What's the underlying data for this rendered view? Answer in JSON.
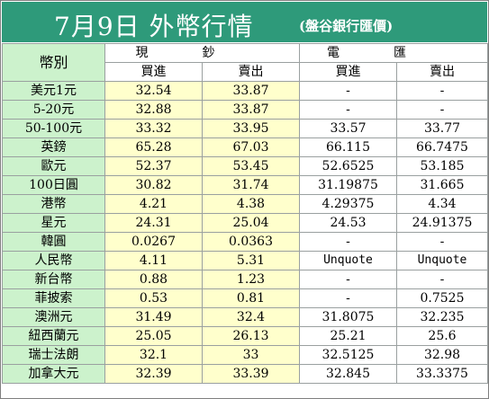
{
  "title": {
    "main": "7月9日 外幣行情",
    "source": "(盤谷銀行匯價)"
  },
  "headers": {
    "currency": "幣別",
    "cash_group": "現鈔",
    "wire_group": "電匯",
    "buy": "買進",
    "sell": "賣出"
  },
  "colors": {
    "title_bg": "#2e9a7a",
    "name_col_bg": "#ccf2cc",
    "cash_col_bg": "#ffffcc"
  },
  "rows": [
    {
      "name": "美元1元",
      "cash_buy": "32.54",
      "cash_sell": "33.87",
      "wire_buy": "-",
      "wire_sell": "-"
    },
    {
      "name": "5-20元",
      "cash_buy": "32.88",
      "cash_sell": "33.87",
      "wire_buy": "-",
      "wire_sell": "-"
    },
    {
      "name": "50-100元",
      "cash_buy": "33.32",
      "cash_sell": "33.95",
      "wire_buy": "33.57",
      "wire_sell": "33.77"
    },
    {
      "name": "英鎊",
      "cash_buy": "65.28",
      "cash_sell": "67.03",
      "wire_buy": "66.115",
      "wire_sell": "66.7475"
    },
    {
      "name": "歐元",
      "cash_buy": "52.37",
      "cash_sell": "53.45",
      "wire_buy": "52.6525",
      "wire_sell": "53.185"
    },
    {
      "name": "100日圓",
      "cash_buy": "30.82",
      "cash_sell": "31.74",
      "wire_buy": "31.19875",
      "wire_sell": "31.665"
    },
    {
      "name": "港幣",
      "cash_buy": "4.21",
      "cash_sell": "4.38",
      "wire_buy": "4.29375",
      "wire_sell": "4.34"
    },
    {
      "name": "星元",
      "cash_buy": "24.31",
      "cash_sell": "25.04",
      "wire_buy": "24.53",
      "wire_sell": "24.91375"
    },
    {
      "name": "韓圓",
      "cash_buy": "0.0267",
      "cash_sell": "0.0363",
      "wire_buy": "-",
      "wire_sell": "-"
    },
    {
      "name": "人民幣",
      "cash_buy": "4.11",
      "cash_sell": "5.31",
      "wire_buy": "Unquote",
      "wire_sell": "Unquote"
    },
    {
      "name": "新台幣",
      "cash_buy": "0.88",
      "cash_sell": "1.23",
      "wire_buy": "-",
      "wire_sell": "-"
    },
    {
      "name": "菲披索",
      "cash_buy": "0.53",
      "cash_sell": "0.81",
      "wire_buy": "-",
      "wire_sell": "0.7525"
    },
    {
      "name": "澳洲元",
      "cash_buy": "31.49",
      "cash_sell": "32.4",
      "wire_buy": "31.8075",
      "wire_sell": "32.235"
    },
    {
      "name": "紐西蘭元",
      "cash_buy": "25.05",
      "cash_sell": "26.13",
      "wire_buy": "25.21",
      "wire_sell": "25.6"
    },
    {
      "name": "瑞士法朗",
      "cash_buy": "32.1",
      "cash_sell": "33",
      "wire_buy": "32.5125",
      "wire_sell": "32.98"
    },
    {
      "name": "加拿大元",
      "cash_buy": "32.39",
      "cash_sell": "33.39",
      "wire_buy": "32.845",
      "wire_sell": "33.3375"
    }
  ]
}
